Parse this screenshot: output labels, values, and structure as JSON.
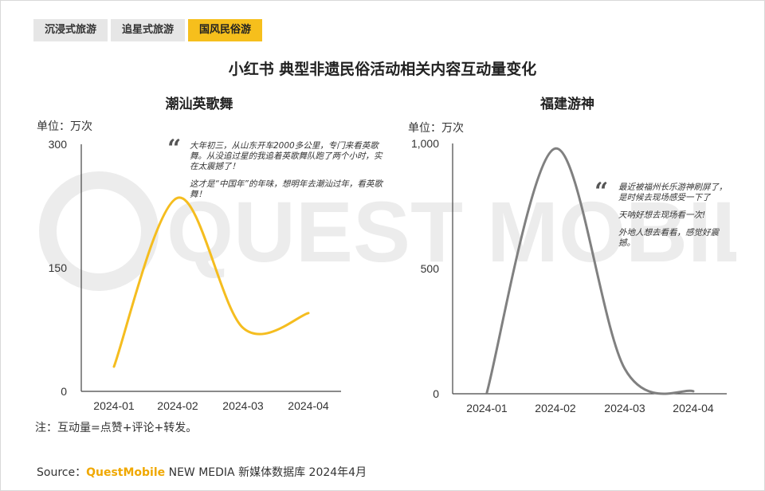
{
  "tabs": [
    {
      "label": "沉浸式旅游",
      "active": false
    },
    {
      "label": "追星式旅游",
      "active": false
    },
    {
      "label": "国风民俗游",
      "active": true
    }
  ],
  "main_title": "小红书 典型非遗民俗活动相关内容互动量变化",
  "note": "注：互动量=点赞+评论+转发。",
  "source": {
    "prefix": "Source：",
    "brand": "QuestMobile",
    "rest": "NEW MEDIA 新媒体数据库 2024年4月"
  },
  "watermark": "QUEST MOBILE",
  "colors": {
    "accent": "#f6bf1c",
    "line_left": "#f5bd1f",
    "line_right": "#808080"
  },
  "chart_data": [
    {
      "type": "line",
      "title": "潮汕英歌舞",
      "ylabel": "单位：万次",
      "categories": [
        "2024-01",
        "2024-02",
        "2024-03",
        "2024-04"
      ],
      "y_ticks": [
        "300",
        "150",
        "0"
      ],
      "ylim": [
        0,
        300
      ],
      "series": [
        {
          "values": [
            30,
            235,
            77,
            95
          ]
        }
      ],
      "annotation": [
        "大年初三，从山东开车2000多公里，专门来看英歌舞。从没追过星的我追着英歌舞队跑了两个小时，实在太震撼了！",
        "这才是“中国年”的年味，想明年去潮汕过年，看英歌舞！"
      ]
    },
    {
      "type": "line",
      "title": "福建游神",
      "ylabel": "单位：万次",
      "categories": [
        "2024-01",
        "2024-02",
        "2024-03",
        "2024-04"
      ],
      "y_ticks": [
        "1,000",
        "500",
        "0"
      ],
      "ylim": [
        0,
        1000
      ],
      "series": [
        {
          "values": [
            5,
            980,
            100,
            10
          ]
        }
      ],
      "annotation": [
        "最近被福州长乐游神刷屏了，是时候去现场感受一下了",
        "天呐好想去现场看一次!",
        "外地人想去看看，感觉好震撼。"
      ]
    }
  ]
}
